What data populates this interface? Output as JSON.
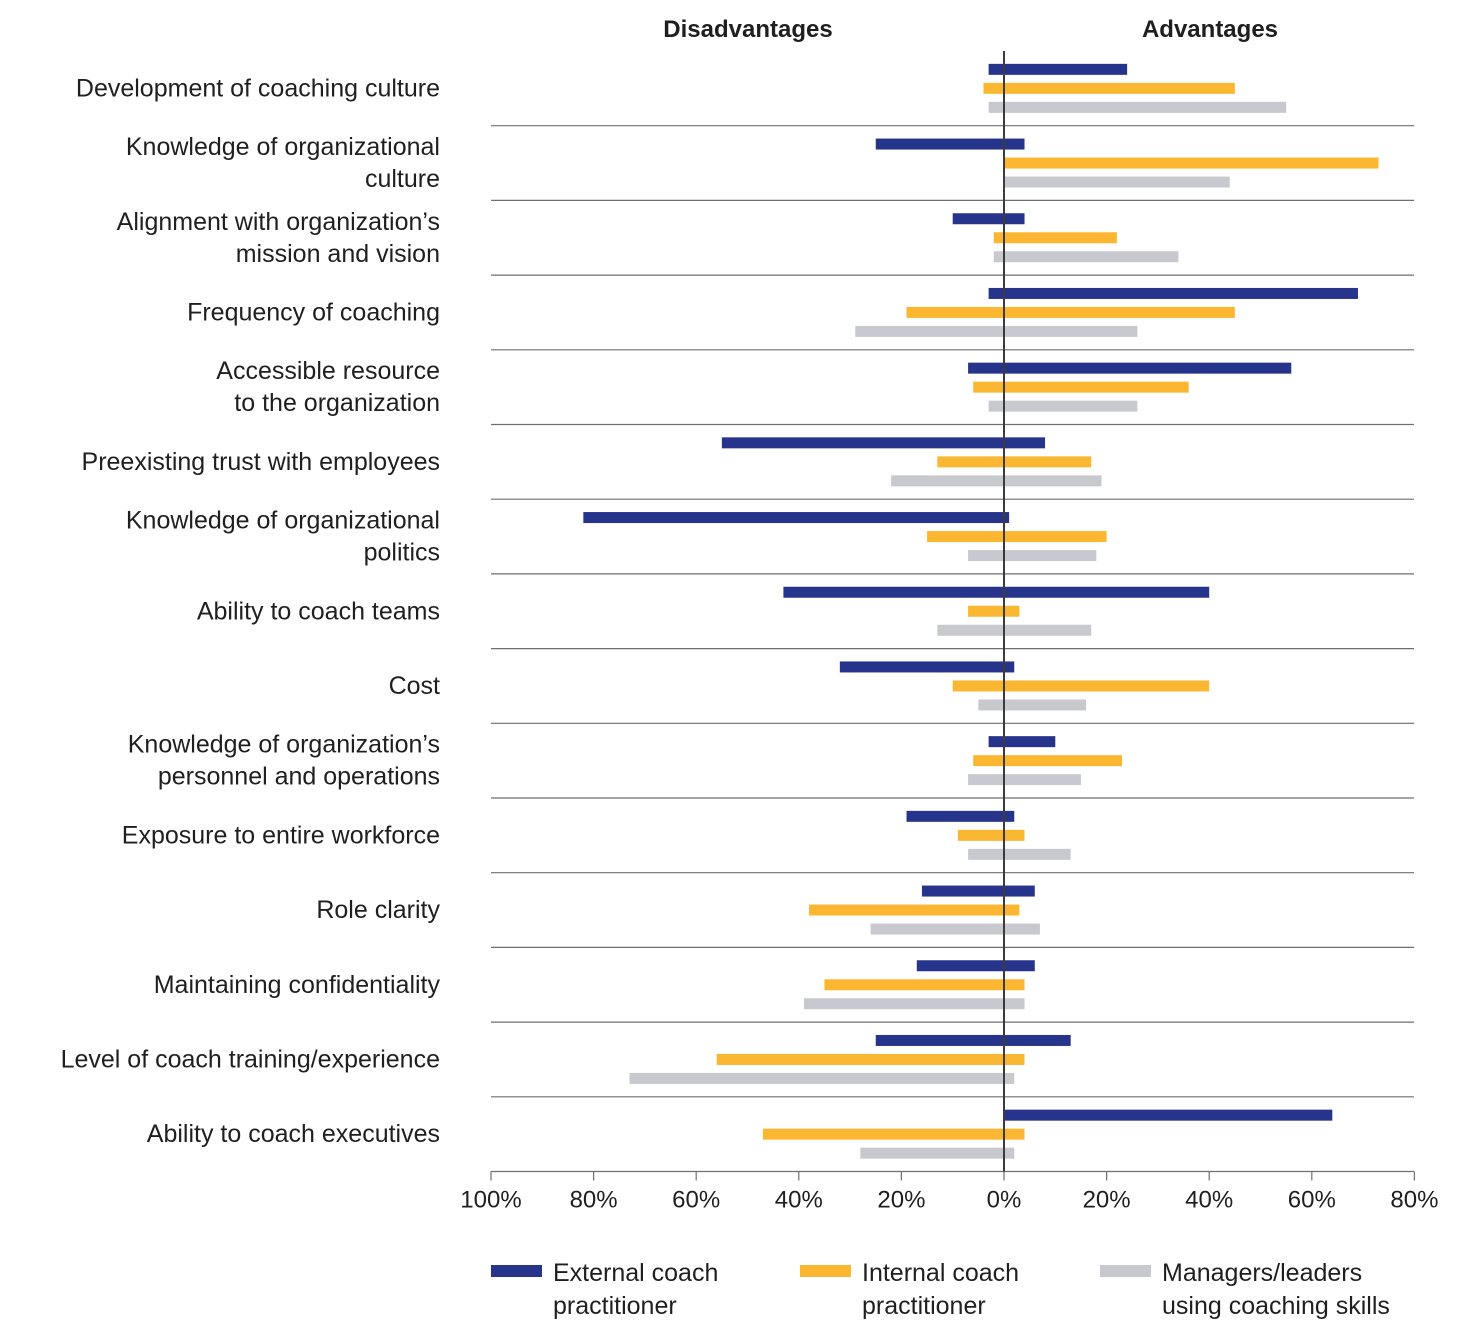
{
  "chart_data": {
    "type": "bar",
    "orientation": "horizontal-diverging",
    "headers": {
      "left": "Disadvantages",
      "right": "Advantages"
    },
    "xlim": [
      -100,
      80
    ],
    "x_ticks": [
      -100,
      -80,
      -60,
      -40,
      -20,
      0,
      20,
      40,
      60,
      80
    ],
    "x_tick_labels": [
      "100%",
      "80%",
      "60%",
      "40%",
      "20%",
      "0%",
      "20%",
      "40%",
      "60%",
      "80%"
    ],
    "categories": [
      [
        "Development of coaching culture"
      ],
      [
        "Knowledge of organizational",
        "culture"
      ],
      [
        "Alignment with organization’s",
        "mission and vision"
      ],
      [
        "Frequency of coaching"
      ],
      [
        "Accessible resource",
        "to the organization"
      ],
      [
        "Preexisting trust with employees"
      ],
      [
        "Knowledge of organizational",
        "politics"
      ],
      [
        "Ability to coach teams"
      ],
      [
        "Cost"
      ],
      [
        "Knowledge of organization’s",
        "personnel and operations"
      ],
      [
        "Exposure to entire workforce"
      ],
      [
        "Role clarity"
      ],
      [
        "Maintaining confidentiality"
      ],
      [
        "Level of coach training/experience"
      ],
      [
        "Ability to coach executives"
      ]
    ],
    "series": [
      {
        "name": "External coach practitioner",
        "name_lines": [
          "External coach",
          "practitioner"
        ],
        "color": "#27348b",
        "disadvantages": [
          3,
          25,
          10,
          3,
          7,
          55,
          82,
          43,
          32,
          3,
          19,
          16,
          17,
          25,
          0
        ],
        "advantages": [
          24,
          4,
          4,
          69,
          56,
          8,
          1,
          40,
          2,
          10,
          2,
          6,
          6,
          13,
          64
        ]
      },
      {
        "name": "Internal coach practitioner",
        "name_lines": [
          "Internal coach",
          "practitioner"
        ],
        "color": "#fbb731",
        "disadvantages": [
          4,
          0,
          2,
          19,
          6,
          13,
          15,
          7,
          10,
          6,
          9,
          38,
          35,
          56,
          47
        ],
        "advantages": [
          45,
          73,
          22,
          45,
          36,
          17,
          20,
          3,
          40,
          23,
          4,
          3,
          4,
          4,
          4
        ]
      },
      {
        "name": "Managers/leaders using coaching skills",
        "name_lines": [
          "Managers/leaders",
          "using coaching skills"
        ],
        "color": "#c8c9cf",
        "disadvantages": [
          3,
          0,
          2,
          29,
          3,
          22,
          7,
          13,
          5,
          7,
          7,
          26,
          39,
          73,
          28
        ],
        "advantages": [
          55,
          44,
          34,
          26,
          26,
          19,
          18,
          17,
          16,
          15,
          13,
          7,
          4,
          2,
          2
        ]
      }
    ],
    "grid": "horizontal separators between categories",
    "legend_position": "bottom"
  }
}
